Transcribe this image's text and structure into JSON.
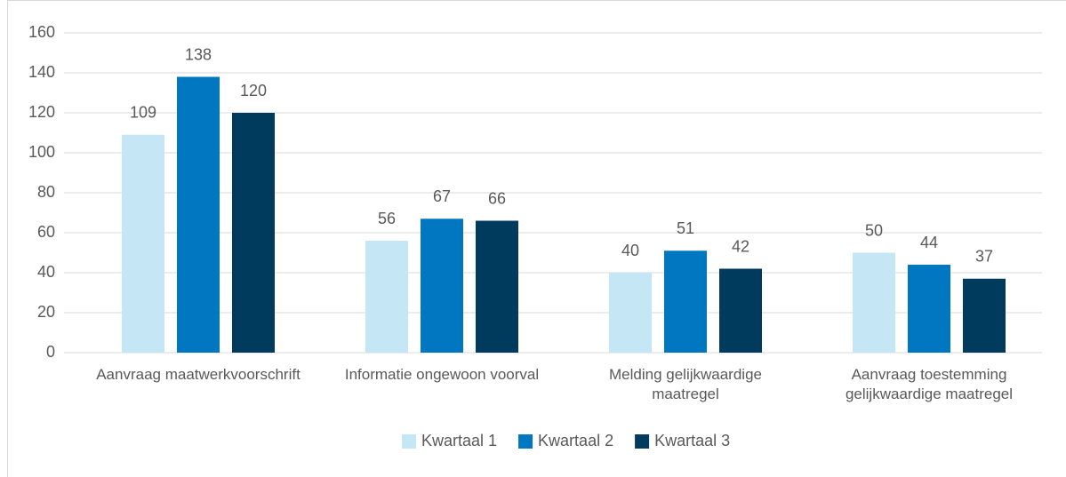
{
  "chart_data": {
    "type": "bar",
    "categories": [
      "Aanvraag maatwerkvoorschrift",
      "Informatie ongewoon voorval",
      "Melding gelijkwaardige maatregel",
      "Aanvraag toestemming gelijkwaardige maatregel"
    ],
    "series": [
      {
        "name": "Kwartaal 1",
        "color": "#c5e6f5",
        "values": [
          109,
          56,
          40,
          50
        ]
      },
      {
        "name": "Kwartaal 2",
        "color": "#0077c0",
        "values": [
          138,
          67,
          51,
          44
        ]
      },
      {
        "name": "Kwartaal 3",
        "color": "#003a5d",
        "values": [
          120,
          66,
          42,
          37
        ]
      }
    ],
    "ylim": [
      0,
      160
    ],
    "yticks": [
      0,
      20,
      40,
      60,
      80,
      100,
      120,
      140,
      160
    ],
    "grid": true,
    "legend": "bottom"
  }
}
